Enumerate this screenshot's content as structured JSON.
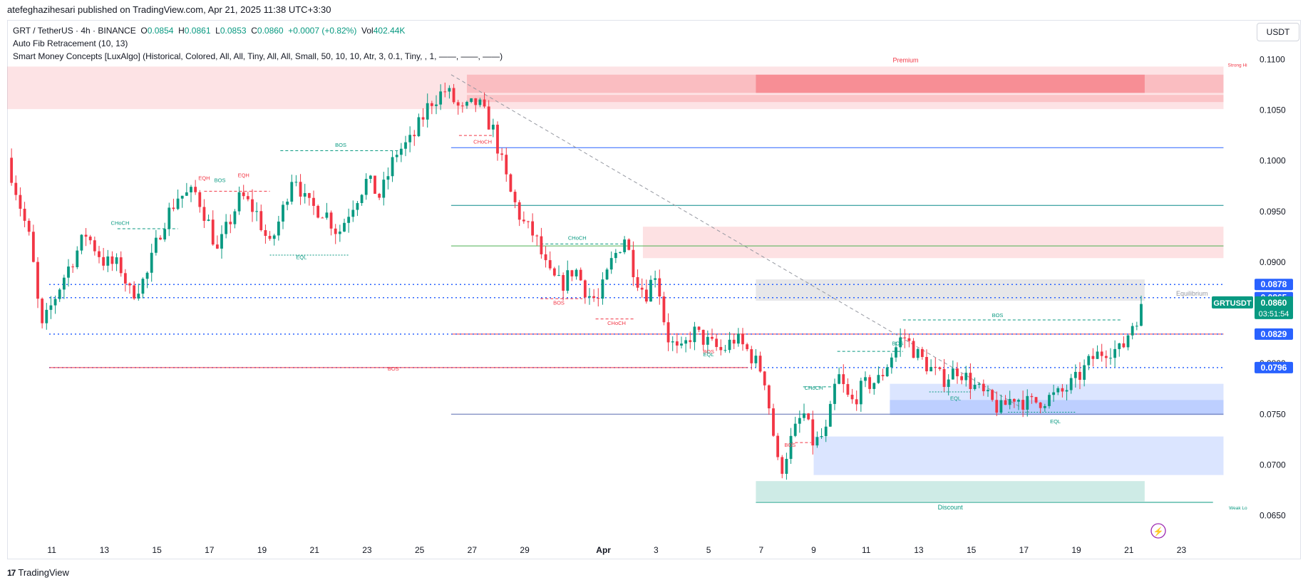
{
  "header": {
    "published_by": "atefeghazihesari published on TradingView.com, Apr 21, 2025 11:38 UTC+3:30"
  },
  "legend": {
    "symbol": "GRT / TetherUS · 4h · BINANCE",
    "o_label": "O",
    "o": "0.0854",
    "h_label": "H",
    "h": "0.0861",
    "l_label": "L",
    "l": "0.0853",
    "c_label": "C",
    "c": "0.0860",
    "change": "+0.0007 (+0.82%)",
    "vol_label": "Vol",
    "vol": "402.44K",
    "indicator1": "Auto Fib Retracement (10, 13)",
    "indicator2": "Smart Money Concepts [LuxAlgo] (Historical, Colored, All, All, Tiny, All, All, Small, 50, 10, 10, Atr, 3, 0.1, Tiny, , 1, ——, ——, ——)"
  },
  "currency_button": "USDT",
  "footer": {
    "brand": "TradingView"
  },
  "colors": {
    "up": "#089981",
    "down": "#f23645",
    "blue": "#2962ff",
    "zone_red": "#f7a8ae",
    "zone_blue": "#b5cbf7",
    "zone_green": "#9fd9c8"
  },
  "chart_data": {
    "type": "candlestick",
    "symbol": "GRTUSDT",
    "interval": "4h",
    "ylim": [
      0.063,
      0.112
    ],
    "y_ticks": [
      "0.1100",
      "0.1050",
      "0.1000",
      "0.0950",
      "0.0900",
      "0.0850",
      "0.0800",
      "0.0750",
      "0.0700",
      "0.0650"
    ],
    "x_ticks": [
      "11",
      "13",
      "15",
      "17",
      "19",
      "21",
      "23",
      "25",
      "27",
      "29",
      "Apr",
      "3",
      "5",
      "7",
      "9",
      "11",
      "13",
      "15",
      "17",
      "19",
      "21",
      "23"
    ],
    "x_tick_days": [
      11,
      13,
      15,
      17,
      19,
      21,
      23,
      25,
      27,
      29,
      32,
      34,
      36,
      38,
      40,
      42,
      44,
      46,
      48,
      50,
      52,
      54
    ],
    "x_range_days": [
      9.3,
      56.7
    ],
    "price_labels": [
      {
        "value": "0.0878",
        "price": 0.0878
      },
      {
        "value": "0.0865",
        "price": 0.0865
      },
      {
        "value": "0.0829",
        "price": 0.0829
      },
      {
        "value": "0.0796",
        "price": 0.0796
      }
    ],
    "last_price": {
      "symbol": "GRTUSDT",
      "value": "0.0860",
      "price": 0.086,
      "countdown": "03:51:54"
    },
    "zone_labels": {
      "premium": "Premium",
      "equilibrium": "Equilibrium",
      "discount": "Discount",
      "strong_high": "Strong Hi",
      "weak_low": "Weak Lo"
    },
    "annotations": [
      {
        "text": "CHoCH",
        "day": 13.6,
        "price": 0.0937,
        "color": "up"
      },
      {
        "text": "EQH",
        "day": 16.8,
        "price": 0.0981,
        "color": "down"
      },
      {
        "text": "BOS",
        "day": 17.4,
        "price": 0.0979,
        "color": "up"
      },
      {
        "text": "EQH",
        "day": 18.3,
        "price": 0.0984,
        "color": "down"
      },
      {
        "text": "BOS",
        "day": 22.0,
        "price": 0.1014,
        "color": "up"
      },
      {
        "text": "EQL",
        "day": 20.5,
        "price": 0.0903,
        "color": "up"
      },
      {
        "text": "CHoCH",
        "day": 27.4,
        "price": 0.1017,
        "color": "down"
      },
      {
        "text": "CHoCH",
        "day": 31.0,
        "price": 0.0922,
        "color": "up"
      },
      {
        "text": "BOS",
        "day": 30.3,
        "price": 0.0858,
        "color": "down"
      },
      {
        "text": "CHoCH",
        "day": 32.5,
        "price": 0.0838,
        "color": "down"
      },
      {
        "text": "BOS",
        "day": 24.0,
        "price": 0.0793,
        "color": "down"
      },
      {
        "text": "BOS",
        "day": 36.0,
        "price": 0.081,
        "color": "down"
      },
      {
        "text": "EQL",
        "day": 36.0,
        "price": 0.0807,
        "color": "up"
      },
      {
        "text": "CHoCH",
        "day": 40.0,
        "price": 0.0774,
        "color": "up"
      },
      {
        "text": "BOS",
        "day": 39.1,
        "price": 0.0718,
        "color": "down"
      },
      {
        "text": "BOS",
        "day": 43.2,
        "price": 0.0818,
        "color": "up"
      },
      {
        "text": "BOS",
        "day": 47.0,
        "price": 0.0846,
        "color": "up"
      },
      {
        "text": "EQL",
        "day": 45.4,
        "price": 0.0764,
        "color": "up"
      },
      {
        "text": "EQL",
        "day": 49.2,
        "price": 0.0741,
        "color": "up"
      }
    ],
    "series": [
      {
        "name": "GRTUSDT",
        "keyframes": [
          [
            9.3,
            0.1003
          ],
          [
            10.2,
            0.0918
          ],
          [
            10.6,
            0.0832
          ],
          [
            10.9,
            0.0852
          ],
          [
            11.5,
            0.0888
          ],
          [
            12.3,
            0.0928
          ],
          [
            13.0,
            0.09
          ],
          [
            13.6,
            0.0896
          ],
          [
            14.0,
            0.0868
          ],
          [
            14.6,
            0.0885
          ],
          [
            15.2,
            0.0937
          ],
          [
            15.8,
            0.0965
          ],
          [
            16.5,
            0.0968
          ],
          [
            17.0,
            0.0936
          ],
          [
            17.3,
            0.091
          ],
          [
            17.7,
            0.0936
          ],
          [
            18.2,
            0.0966
          ],
          [
            18.8,
            0.0948
          ],
          [
            19.3,
            0.0915
          ],
          [
            19.8,
            0.0952
          ],
          [
            20.2,
            0.0991
          ],
          [
            20.7,
            0.0956
          ],
          [
            21.4,
            0.095
          ],
          [
            21.9,
            0.0928
          ],
          [
            22.4,
            0.0955
          ],
          [
            23.0,
            0.0981
          ],
          [
            23.5,
            0.0964
          ],
          [
            24.1,
            0.1008
          ],
          [
            24.7,
            0.102
          ],
          [
            25.4,
            0.1058
          ],
          [
            26.0,
            0.107
          ],
          [
            26.6,
            0.1048
          ],
          [
            27.2,
            0.1058
          ],
          [
            27.8,
            0.103
          ],
          [
            28.4,
            0.0972
          ],
          [
            28.9,
            0.094
          ],
          [
            29.4,
            0.0925
          ],
          [
            29.9,
            0.0888
          ],
          [
            30.4,
            0.0877
          ],
          [
            30.9,
            0.0895
          ],
          [
            31.4,
            0.0868
          ],
          [
            31.8,
            0.0862
          ],
          [
            32.3,
            0.09
          ],
          [
            32.8,
            0.0925
          ],
          [
            33.2,
            0.0888
          ],
          [
            33.6,
            0.0868
          ],
          [
            34.0,
            0.0892
          ],
          [
            34.4,
            0.0828
          ],
          [
            34.9,
            0.0808
          ],
          [
            35.4,
            0.0832
          ],
          [
            36.0,
            0.082
          ],
          [
            36.5,
            0.0812
          ],
          [
            37.0,
            0.0825
          ],
          [
            37.5,
            0.0812
          ],
          [
            38.1,
            0.079
          ],
          [
            38.4,
            0.0742
          ],
          [
            38.7,
            0.069
          ],
          [
            39.1,
            0.0722
          ],
          [
            39.6,
            0.0752
          ],
          [
            40.0,
            0.072
          ],
          [
            40.5,
            0.0733
          ],
          [
            40.9,
            0.079
          ],
          [
            41.4,
            0.076
          ],
          [
            41.9,
            0.0778
          ],
          [
            42.5,
            0.0784
          ],
          [
            43.0,
            0.081
          ],
          [
            43.4,
            0.0828
          ],
          [
            43.9,
            0.081
          ],
          [
            44.4,
            0.0796
          ],
          [
            44.9,
            0.0784
          ],
          [
            45.5,
            0.0795
          ],
          [
            46.0,
            0.078
          ],
          [
            46.6,
            0.0766
          ],
          [
            47.1,
            0.0754
          ],
          [
            47.6,
            0.0768
          ],
          [
            48.2,
            0.076
          ],
          [
            48.7,
            0.0764
          ],
          [
            49.4,
            0.077
          ],
          [
            50.0,
            0.0784
          ],
          [
            50.6,
            0.0805
          ],
          [
            51.2,
            0.0815
          ],
          [
            51.7,
            0.0812
          ],
          [
            52.1,
            0.0838
          ],
          [
            52.4,
            0.085
          ],
          [
            52.6,
            0.086
          ]
        ]
      }
    ]
  }
}
